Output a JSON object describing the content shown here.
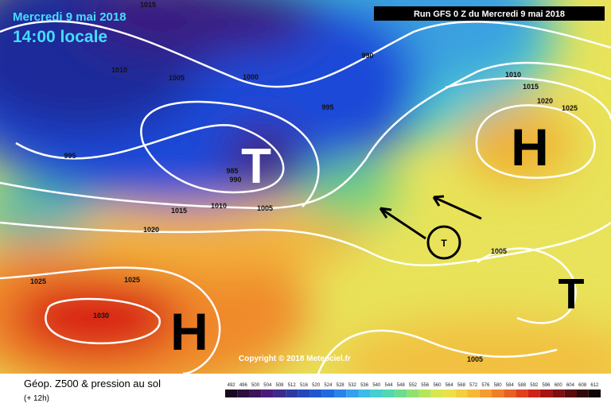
{
  "header": {
    "date": "Mercredi 9 mai 2018",
    "time": "14:00 locale",
    "run": "Run GFS 0 Z du Mercredi 9 mai 2018"
  },
  "map": {
    "isobar_labels": [
      "1015",
      "1010",
      "1005",
      "1000",
      "990",
      "995",
      "995",
      "985",
      "990",
      "1015",
      "1010",
      "1005",
      "1020",
      "1025",
      "1025",
      "1030",
      "1010",
      "1015",
      "1020",
      "1025",
      "1005",
      "1005"
    ],
    "pressure_centers": [
      "T",
      "H",
      "H",
      "T",
      "T"
    ],
    "copyright": "Copyright © 2018 Meteociel.fr"
  },
  "footer": {
    "title": "Géop. Z500 & pression au sol",
    "lead": "(+ 12h)"
  },
  "scale": {
    "labels": [
      "492",
      "496",
      "500",
      "504",
      "508",
      "512",
      "516",
      "520",
      "524",
      "528",
      "532",
      "536",
      "540",
      "544",
      "548",
      "552",
      "556",
      "560",
      "564",
      "568",
      "572",
      "576",
      "580",
      "584",
      "588",
      "592",
      "596",
      "600",
      "604",
      "608",
      "612"
    ]
  }
}
